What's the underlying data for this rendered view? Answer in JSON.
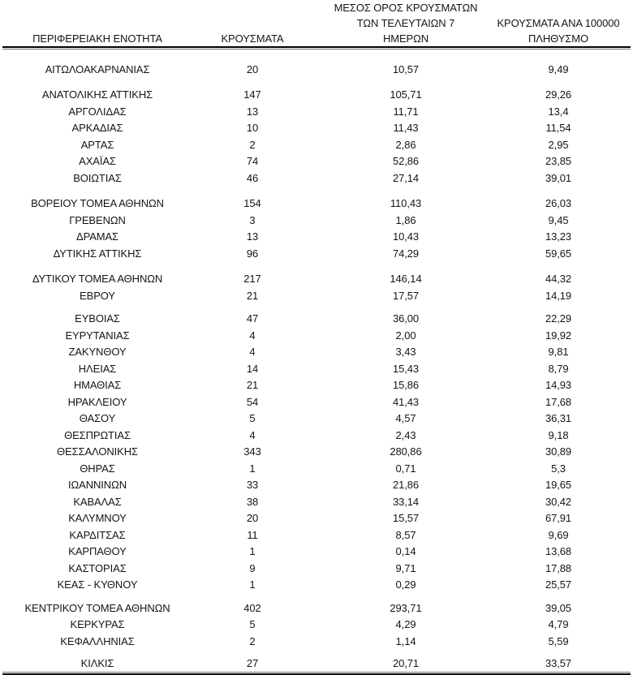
{
  "table": {
    "header": {
      "col1": "ΠΕΡΙΦΕΡΕΙΑΚΗ ΕΝΟΤΗΤΑ",
      "col2": "ΚΡΟΥΣΜΑΤΑ",
      "col3_line1": "ΜΕΣΟΣ ΟΡΟΣ ΚΡΟΥΣΜΑΤΩΝ",
      "col3_line2": "ΤΩΝ ΤΕΛΕΥΤΑΙΩΝ 7",
      "col3_line3": "ΗΜΕΡΩΝ",
      "col4_line1": "ΚΡΟΥΣΜΑΤΑ ΑΝΑ 100000",
      "col4_line2": "ΠΛΗΘΥΣΜΟ"
    },
    "colors": {
      "text": "#151515",
      "rule": "#000000",
      "background": "#ffffff"
    },
    "groups": [
      {
        "rows": [
          {
            "region": "ΑΙΤΩΛΟΑΚΑΡΝΑΝΙΑΣ",
            "cases": "20",
            "avg7": "10,57",
            "per100k": "9,49"
          }
        ]
      },
      {
        "rows": [
          {
            "region": "ΑΝΑΤΟΛΙΚΗΣ ΑΤΤΙΚΗΣ",
            "cases": "147",
            "avg7": "105,71",
            "per100k": "29,26"
          },
          {
            "region": "ΑΡΓΟΛΙΔΑΣ",
            "cases": "13",
            "avg7": "11,71",
            "per100k": "13,4"
          },
          {
            "region": "ΑΡΚΑΔΙΑΣ",
            "cases": "10",
            "avg7": "11,43",
            "per100k": "11,54"
          },
          {
            "region": "ΑΡΤΑΣ",
            "cases": "2",
            "avg7": "2,86",
            "per100k": "2,95"
          },
          {
            "region": "ΑΧΑΪΑΣ",
            "cases": "74",
            "avg7": "52,86",
            "per100k": "23,85"
          },
          {
            "region": "ΒΟΙΩΤΙΑΣ",
            "cases": "46",
            "avg7": "27,14",
            "per100k": "39,01"
          }
        ]
      },
      {
        "rows": [
          {
            "region": "ΒΟΡΕΙΟΥ ΤΟΜΕΑ ΑΘΗΝΩΝ",
            "cases": "154",
            "avg7": "110,43",
            "per100k": "26,03"
          },
          {
            "region": "ΓΡΕΒΕΝΩΝ",
            "cases": "3",
            "avg7": "1,86",
            "per100k": "9,45"
          },
          {
            "region": "ΔΡΑΜΑΣ",
            "cases": "13",
            "avg7": "10,43",
            "per100k": "13,23"
          },
          {
            "region": "ΔΥΤΙΚΗΣ ΑΤΤΙΚΗΣ",
            "cases": "96",
            "avg7": "74,29",
            "per100k": "59,65"
          }
        ]
      },
      {
        "rows": [
          {
            "region": "ΔΥΤΙΚΟΥ ΤΟΜΕΑ ΑΘΗΝΩΝ",
            "cases": "217",
            "avg7": "146,14",
            "per100k": "44,32"
          },
          {
            "region": "ΕΒΡΟΥ",
            "cases": "21",
            "avg7": "17,57",
            "per100k": "14,19"
          }
        ]
      },
      {
        "rows": [
          {
            "region": "ΕΥΒΟΙΑΣ",
            "cases": "47",
            "avg7": "36,00",
            "per100k": "22,29"
          },
          {
            "region": "ΕΥΡΥΤΑΝΙΑΣ",
            "cases": "4",
            "avg7": "2,00",
            "per100k": "19,92"
          },
          {
            "region": "ΖΑΚΥΝΘΟΥ",
            "cases": "4",
            "avg7": "3,43",
            "per100k": "9,81"
          },
          {
            "region": "ΗΛΕΙΑΣ",
            "cases": "14",
            "avg7": "15,43",
            "per100k": "8,79"
          },
          {
            "region": "ΗΜΑΘΙΑΣ",
            "cases": "21",
            "avg7": "15,86",
            "per100k": "14,93"
          },
          {
            "region": "ΗΡΑΚΛΕΙΟΥ",
            "cases": "54",
            "avg7": "41,43",
            "per100k": "17,68"
          },
          {
            "region": "ΘΑΣΟΥ",
            "cases": "5",
            "avg7": "4,57",
            "per100k": "36,31"
          },
          {
            "region": "ΘΕΣΠΡΩΤΙΑΣ",
            "cases": "4",
            "avg7": "2,43",
            "per100k": "9,18"
          },
          {
            "region": "ΘΕΣΣΑΛΟΝΙΚΗΣ",
            "cases": "343",
            "avg7": "280,86",
            "per100k": "30,89"
          },
          {
            "region": "ΘΗΡΑΣ",
            "cases": "1",
            "avg7": "0,71",
            "per100k": "5,3"
          },
          {
            "region": "ΙΩΑΝΝΙΝΩΝ",
            "cases": "33",
            "avg7": "21,86",
            "per100k": "19,65"
          },
          {
            "region": "ΚΑΒΑΛΑΣ",
            "cases": "38",
            "avg7": "33,14",
            "per100k": "30,42"
          },
          {
            "region": "ΚΑΛΥΜΝΟΥ",
            "cases": "20",
            "avg7": "15,57",
            "per100k": "67,91"
          },
          {
            "region": "ΚΑΡΔΙΤΣΑΣ",
            "cases": "11",
            "avg7": "8,57",
            "per100k": "9,69"
          },
          {
            "region": "ΚΑΡΠΑΘΟΥ",
            "cases": "1",
            "avg7": "0,14",
            "per100k": "13,68"
          },
          {
            "region": "ΚΑΣΤΟΡΙΑΣ",
            "cases": "9",
            "avg7": "9,71",
            "per100k": "17,88"
          },
          {
            "region": "ΚΕΑΣ - ΚΥΘΝΟΥ",
            "cases": "1",
            "avg7": "0,29",
            "per100k": "25,57"
          }
        ]
      },
      {
        "rows": [
          {
            "region": "ΚΕΝΤΡΙΚΟΥ ΤΟΜΕΑ ΑΘΗΝΩΝ",
            "cases": "402",
            "avg7": "293,71",
            "per100k": "39,05"
          },
          {
            "region": "ΚΕΡΚΥΡΑΣ",
            "cases": "5",
            "avg7": "4,29",
            "per100k": "4,79"
          },
          {
            "region": "ΚΕΦΑΛΛΗΝΙΑΣ",
            "cases": "2",
            "avg7": "1,14",
            "per100k": "5,59"
          }
        ]
      },
      {
        "rows": [
          {
            "region": "ΚΙΛΚΙΣ",
            "cases": "27",
            "avg7": "20,71",
            "per100k": "33,57"
          }
        ]
      }
    ]
  }
}
